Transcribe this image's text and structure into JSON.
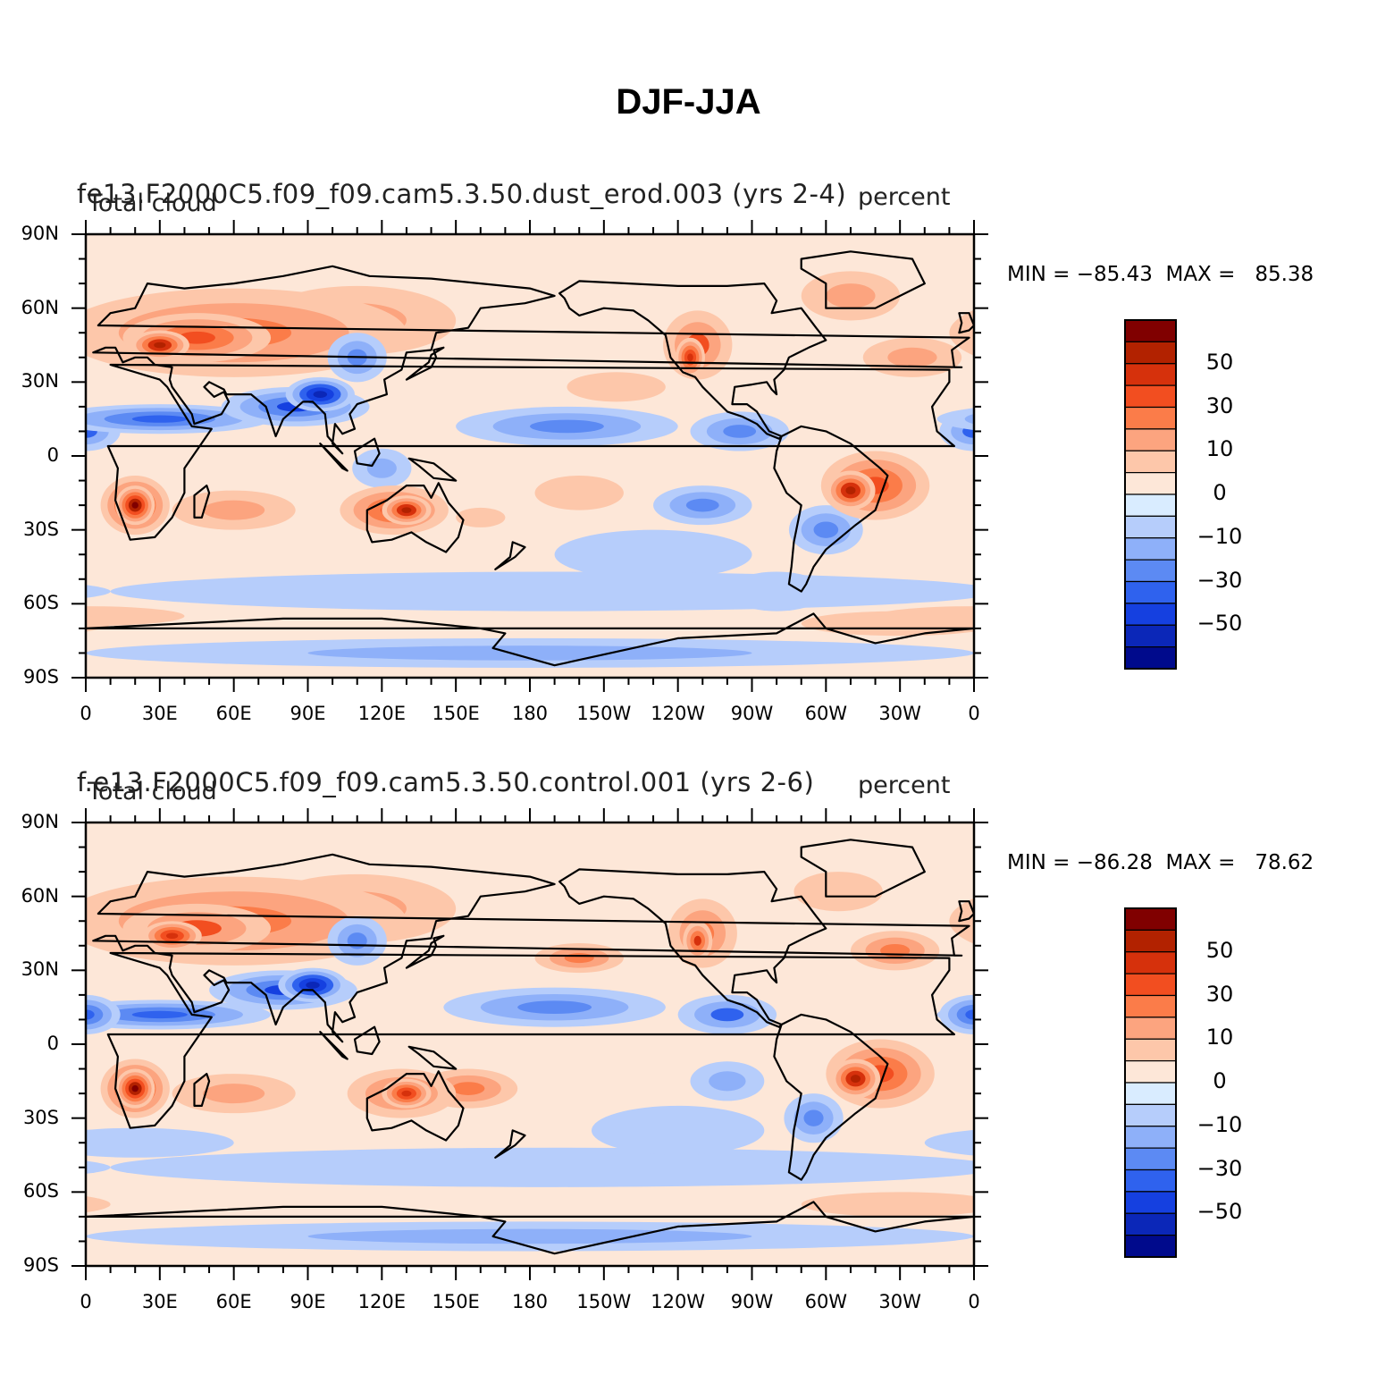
{
  "title": "DJF-JJA",
  "panels": [
    {
      "case": "fe13.F2000C5.f09_f09.cam5.3.50.dust_erod.003 (yrs 2-4)",
      "variable": "Total cloud",
      "units": "percent",
      "min_label": "MIN = −85.43",
      "max_label": "MAX =   85.38"
    },
    {
      "case": "f.e13.F2000C5.f09_f09.cam5.3.50.control.001 (yrs 2-6)",
      "variable": "Total cloud",
      "units": "percent",
      "min_label": "MIN = −86.28",
      "max_label": "MAX =   78.62"
    }
  ],
  "lat_labels": [
    "90N",
    "60N",
    "30N",
    "0",
    "30S",
    "60S",
    "90S"
  ],
  "lon_labels": [
    "0",
    "30E",
    "60E",
    "90E",
    "120E",
    "150E",
    "180",
    "150W",
    "120W",
    "90W",
    "60W",
    "30W",
    "0"
  ],
  "colorbar": {
    "labels": [
      "50",
      "30",
      "10",
      "0",
      "−10",
      "−30",
      "−50"
    ],
    "colors": [
      "#800000",
      "#b22200",
      "#d6310c",
      "#f24e20",
      "#fb7c49",
      "#fca47f",
      "#fdc7aa",
      "#fde7d8",
      "#d9ecff",
      "#b6cdfb",
      "#8eb0f9",
      "#5c8af3",
      "#2f62ee",
      "#1540e0",
      "#0b27b8",
      "#000a8c"
    ]
  }
}
